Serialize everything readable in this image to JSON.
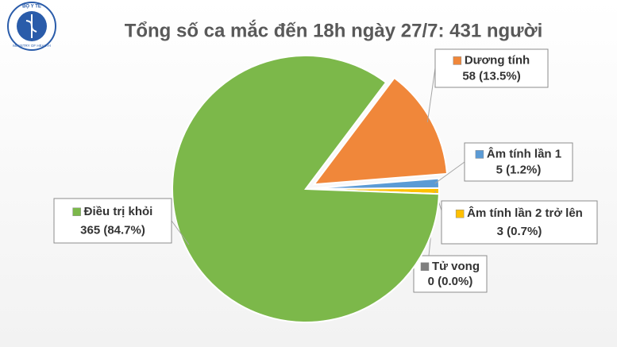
{
  "logo": {
    "top": "BỘ Y TẾ",
    "bottom": "MINISTRY OF HEALTH"
  },
  "chart_data": {
    "type": "pie",
    "title": "Tổng số ca mắc đến 18h ngày 27/7: 431 người",
    "categories": [
      "Dương tính",
      "Âm tính lần 1",
      "Âm tính lần 2 trở lên",
      "Tử vong",
      "Điều trị khỏi"
    ],
    "values": [
      58,
      5,
      3,
      0,
      365
    ],
    "value_labels": [
      "58 (13.5%)",
      "5 (1.2%)",
      "3 (0.7%)",
      "0 (0.0%)",
      "365 (84.7%)"
    ],
    "colors": [
      "#f0873a",
      "#5b9bd5",
      "#ffc000",
      "#7f7f7f",
      "#7cb84a"
    ]
  }
}
